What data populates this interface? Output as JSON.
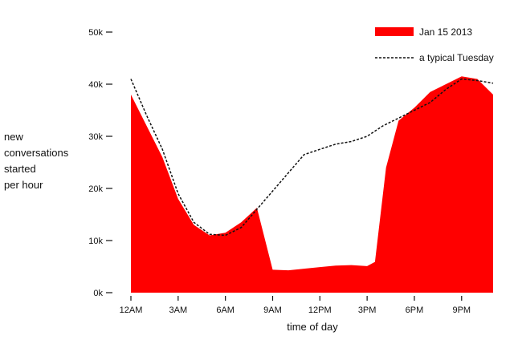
{
  "chart_data": {
    "type": "area",
    "title": "",
    "xlabel": "time of day",
    "ylabel_lines": [
      "new",
      "conversations",
      "started",
      "per hour"
    ],
    "x_hours": [
      0,
      1,
      2,
      3,
      4,
      5,
      6,
      7,
      8,
      9,
      10,
      11,
      12,
      13,
      14,
      15,
      15.5,
      16.2,
      17,
      18,
      19,
      20,
      21,
      22,
      23
    ],
    "x_ticks": [
      {
        "hour": 0,
        "label": "12AM"
      },
      {
        "hour": 3,
        "label": "3AM"
      },
      {
        "hour": 6,
        "label": "6AM"
      },
      {
        "hour": 9,
        "label": "9AM"
      },
      {
        "hour": 12,
        "label": "12PM"
      },
      {
        "hour": 15,
        "label": "3PM"
      },
      {
        "hour": 18,
        "label": "6PM"
      },
      {
        "hour": 21,
        "label": "9PM"
      }
    ],
    "y_ticks": [
      {
        "value": 0,
        "label": "0k"
      },
      {
        "value": 10000,
        "label": "10k"
      },
      {
        "value": 20000,
        "label": "20k"
      },
      {
        "value": 30000,
        "label": "30k"
      },
      {
        "value": 40000,
        "label": "40k"
      },
      {
        "value": 50000,
        "label": "50k"
      }
    ],
    "ylim": [
      0,
      50000
    ],
    "xlim": [
      0,
      23
    ],
    "grid": false,
    "legend_position": "top-right",
    "series": [
      {
        "name": "Jan 15 2013",
        "style": "filled-area",
        "color": "#ff0000",
        "x": [
          0,
          1,
          2,
          3,
          4,
          5,
          6,
          7,
          8,
          9,
          10,
          11,
          12,
          13,
          14,
          15,
          15.5,
          16.2,
          17,
          18,
          19,
          20,
          21,
          22,
          23
        ],
        "values": [
          38000,
          32000,
          26000,
          18000,
          13000,
          11000,
          11500,
          13500,
          16300,
          4400,
          4300,
          4600,
          4900,
          5200,
          5300,
          5100,
          5900,
          24000,
          33000,
          35500,
          38500,
          40000,
          41500,
          41000,
          38000
        ]
      },
      {
        "name": "a typical Tuesday",
        "style": "dashed-line",
        "color": "#111111",
        "x": [
          0,
          1,
          2,
          3,
          4,
          5,
          6,
          7,
          8,
          9,
          10,
          11,
          12,
          13,
          14,
          15,
          16,
          17,
          18,
          19,
          20,
          21,
          22,
          23
        ],
        "values": [
          41000,
          34000,
          27500,
          19000,
          13500,
          11200,
          11000,
          12500,
          16000,
          19500,
          23000,
          26500,
          27500,
          28500,
          29000,
          30000,
          32000,
          33500,
          35000,
          36500,
          39000,
          41000,
          40700,
          40200
        ]
      }
    ]
  }
}
